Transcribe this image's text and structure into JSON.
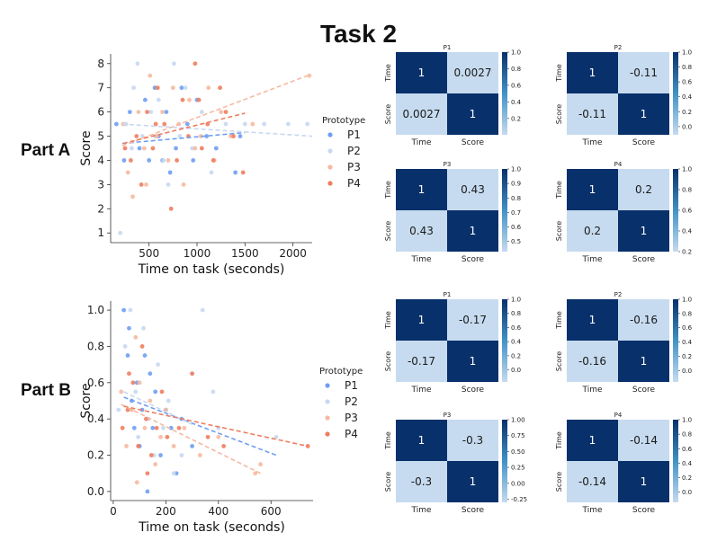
{
  "title": "Task 2",
  "part_labels": {
    "a": "Part A",
    "b": "Part B"
  },
  "colors": {
    "P1": "#6f9ef2",
    "P2": "#c6d8f2",
    "P3": "#f6b9a0",
    "P4": "#ef7d5f",
    "heat_low": "#c6dbef",
    "heat_mid": "#4292c6",
    "heat_high": "#08306b"
  },
  "chart_data": [
    {
      "id": "partA_scatter",
      "type": "scatter",
      "xlabel": "Time on task (seconds)",
      "ylabel": "Score",
      "xlim": [
        100,
        2200
      ],
      "ylim": [
        0.6,
        8.4
      ],
      "xticks": [
        500,
        1000,
        1500,
        2000
      ],
      "yticks": [
        1,
        2,
        3,
        4,
        5,
        6,
        7,
        8
      ],
      "legend": {
        "title": "Prototype",
        "entries": [
          "P1",
          "P2",
          "P3",
          "P4"
        ],
        "position": "right"
      },
      "series": [
        {
          "name": "P1",
          "color_key": "P1",
          "points": [
            [
              160,
              5.5
            ],
            [
              300,
              6
            ],
            [
              400,
              4.5
            ],
            [
              460,
              6.5
            ],
            [
              500,
              4
            ],
            [
              560,
              7
            ],
            [
              600,
              5
            ],
            [
              680,
              6
            ],
            [
              720,
              3.5
            ],
            [
              780,
              4.5
            ],
            [
              840,
              7
            ],
            [
              900,
              5.5
            ],
            [
              960,
              4
            ],
            [
              1000,
              6.5
            ],
            [
              1100,
              5
            ],
            [
              1200,
              4.5
            ],
            [
              1400,
              3.5
            ],
            [
              1450,
              5
            ],
            [
              240,
              4
            ],
            [
              640,
              4
            ]
          ],
          "trend": [
            [
              220,
              4.7
            ],
            [
              1500,
              5.15
            ]
          ]
        },
        {
          "name": "P2",
          "color_key": "P2",
          "points": [
            [
              200,
              1
            ],
            [
              260,
              5.5
            ],
            [
              320,
              4.5
            ],
            [
              380,
              8
            ],
            [
              430,
              5
            ],
            [
              520,
              6
            ],
            [
              600,
              6.5
            ],
            [
              650,
              4
            ],
            [
              700,
              3
            ],
            [
              760,
              8
            ],
            [
              820,
              5
            ],
            [
              880,
              7
            ],
            [
              950,
              4.5
            ],
            [
              1050,
              6
            ],
            [
              1150,
              3.5
            ],
            [
              1300,
              5.5
            ],
            [
              1500,
              5.5
            ],
            [
              1700,
              5.5
            ],
            [
              1950,
              5.5
            ],
            [
              2150,
              5.5
            ],
            [
              340,
              7
            ],
            [
              560,
              5
            ]
          ],
          "trend": [
            [
              220,
              5.5
            ],
            [
              2200,
              5.0
            ]
          ]
        },
        {
          "name": "P3",
          "color_key": "P3",
          "points": [
            [
              230,
              5.5
            ],
            [
              280,
              3.5
            ],
            [
              330,
              2.5
            ],
            [
              390,
              6
            ],
            [
              450,
              4.5
            ],
            [
              510,
              7.5
            ],
            [
              580,
              5
            ],
            [
              640,
              6
            ],
            [
              700,
              4
            ],
            [
              750,
              7
            ],
            [
              810,
              5.5
            ],
            [
              860,
              3
            ],
            [
              920,
              6.5
            ],
            [
              980,
              4.5
            ],
            [
              1040,
              5
            ],
            [
              1120,
              7
            ],
            [
              1180,
              4
            ],
            [
              1250,
              6
            ],
            [
              1350,
              5
            ],
            [
              1580,
              5.5
            ],
            [
              2170,
              7.5
            ],
            [
              470,
              3
            ]
          ],
          "trend": [
            [
              220,
              4.6
            ],
            [
              2150,
              7.5
            ]
          ]
        },
        {
          "name": "P4",
          "color_key": "P4",
          "points": [
            [
              250,
              4.5
            ],
            [
              310,
              4
            ],
            [
              370,
              5
            ],
            [
              420,
              3
            ],
            [
              480,
              6
            ],
            [
              540,
              4.5
            ],
            [
              590,
              7
            ],
            [
              660,
              5.5
            ],
            [
              730,
              2
            ],
            [
              790,
              4
            ],
            [
              850,
              6.5
            ],
            [
              910,
              5
            ],
            [
              980,
              8
            ],
            [
              1050,
              4.5
            ],
            [
              1110,
              5.5
            ],
            [
              1170,
              4
            ],
            [
              1240,
              7
            ],
            [
              1300,
              6
            ],
            [
              1380,
              5
            ],
            [
              1480,
              3.5
            ],
            [
              570,
              5.5
            ],
            [
              1020,
              6.5
            ]
          ],
          "trend": [
            [
              230,
              4.7
            ],
            [
              1500,
              5.95
            ]
          ]
        }
      ]
    },
    {
      "id": "partB_scatter",
      "type": "scatter",
      "xlabel": "Time on task (seconds)",
      "ylabel": "Score",
      "xlim": [
        -10,
        760
      ],
      "ylim": [
        -0.05,
        1.05
      ],
      "xticks": [
        0,
        200,
        400,
        600
      ],
      "yticks": [
        0.0,
        0.2,
        0.4,
        0.6,
        0.8,
        1.0
      ],
      "legend": {
        "title": "Prototype",
        "entries": [
          "P1",
          "P2",
          "P3",
          "P4"
        ],
        "position": "right"
      },
      "series": [
        {
          "name": "P1",
          "color_key": "P1",
          "points": [
            [
              40,
              1.0
            ],
            [
              55,
              0.75
            ],
            [
              70,
              0.5
            ],
            [
              80,
              0.35
            ],
            [
              90,
              0.6
            ],
            [
              100,
              0.25
            ],
            [
              110,
              0.45
            ],
            [
              120,
              0.75
            ],
            [
              130,
              0.0
            ],
            [
              150,
              0.35
            ],
            [
              160,
              0.55
            ],
            [
              180,
              0.2
            ],
            [
              200,
              0.45
            ],
            [
              220,
              0.35
            ],
            [
              240,
              0.1
            ],
            [
              260,
              0.4
            ],
            [
              300,
              0.25
            ],
            [
              60,
              0.9
            ],
            [
              140,
              0.65
            ]
          ],
          "trend": [
            [
              40,
              0.52
            ],
            [
              620,
              0.2
            ]
          ]
        },
        {
          "name": "P2",
          "color_key": "P2",
          "points": [
            [
              20,
              0.45
            ],
            [
              45,
              0.8
            ],
            [
              65,
              1.0
            ],
            [
              85,
              0.55
            ],
            [
              95,
              0.3
            ],
            [
              115,
              0.9
            ],
            [
              135,
              0.4
            ],
            [
              155,
              0.2
            ],
            [
              170,
              0.7
            ],
            [
              190,
              0.35
            ],
            [
              210,
              0.5
            ],
            [
              230,
              0.1
            ],
            [
              260,
              0.2
            ],
            [
              300,
              0.65
            ],
            [
              340,
              1.0
            ],
            [
              380,
              0.55
            ],
            [
              400,
              0.35
            ],
            [
              620,
              0.3
            ]
          ],
          "trend": [
            [
              40,
              0.55
            ],
            [
              300,
              0.37
            ]
          ]
        },
        {
          "name": "P3",
          "color_key": "P3",
          "points": [
            [
              30,
              0.55
            ],
            [
              50,
              0.25
            ],
            [
              70,
              0.45
            ],
            [
              85,
              0.85
            ],
            [
              100,
              0.6
            ],
            [
              120,
              0.35
            ],
            [
              140,
              0.5
            ],
            [
              160,
              0.15
            ],
            [
              180,
              0.3
            ],
            [
              200,
              0.45
            ],
            [
              230,
              0.25
            ],
            [
              270,
              0.35
            ],
            [
              330,
              0.2
            ],
            [
              400,
              0.3
            ],
            [
              540,
              0.1
            ],
            [
              560,
              0.15
            ],
            [
              90,
              0.05
            ]
          ],
          "trend": [
            [
              30,
              0.48
            ],
            [
              560,
              0.1
            ]
          ]
        },
        {
          "name": "P4",
          "color_key": "P4",
          "points": [
            [
              35,
              0.35
            ],
            [
              55,
              0.45
            ],
            [
              75,
              0.6
            ],
            [
              95,
              0.25
            ],
            [
              110,
              0.8
            ],
            [
              125,
              0.4
            ],
            [
              145,
              0.2
            ],
            [
              165,
              0.35
            ],
            [
              185,
              0.55
            ],
            [
              205,
              0.3
            ],
            [
              250,
              0.35
            ],
            [
              300,
              0.65
            ],
            [
              360,
              0.3
            ],
            [
              420,
              0.25
            ],
            [
              740,
              0.25
            ],
            [
              130,
              0.1
            ],
            [
              60,
              0.65
            ]
          ],
          "trend": [
            [
              40,
              0.47
            ],
            [
              740,
              0.25
            ]
          ]
        }
      ]
    },
    {
      "id": "partA_P1",
      "type": "heatmap",
      "title": "P1",
      "row_labels": [
        "Time",
        "Score"
      ],
      "col_labels": [
        "Time",
        "Score"
      ],
      "values": [
        [
          "1",
          "0.0027"
        ],
        [
          "0.0027",
          "1"
        ]
      ],
      "vmin": 0.0027,
      "vmax": 1.0,
      "cbar_ticks": [
        "0.2",
        "0.4",
        "0.6",
        "0.8",
        "1.0"
      ],
      "cbar_tick_values": [
        0.2,
        0.4,
        0.6,
        0.8,
        1.0
      ]
    },
    {
      "id": "partA_P2",
      "type": "heatmap",
      "title": "P2",
      "row_labels": [
        "Time",
        "Score"
      ],
      "col_labels": [
        "Time",
        "Score"
      ],
      "values": [
        [
          "1",
          "-0.11"
        ],
        [
          "-0.11",
          "1"
        ]
      ],
      "vmin": -0.11,
      "vmax": 1.0,
      "cbar_ticks": [
        "0.0",
        "0.2",
        "0.4",
        "0.6",
        "0.8",
        "1.0"
      ],
      "cbar_tick_values": [
        0,
        0.2,
        0.4,
        0.6,
        0.8,
        1.0
      ]
    },
    {
      "id": "partA_P3",
      "type": "heatmap",
      "title": "P3",
      "row_labels": [
        "Time",
        "Score"
      ],
      "col_labels": [
        "Time",
        "Score"
      ],
      "values": [
        [
          "1",
          "0.43"
        ],
        [
          "0.43",
          "1"
        ]
      ],
      "vmin": 0.43,
      "vmax": 1.0,
      "cbar_ticks": [
        "0.5",
        "0.6",
        "0.7",
        "0.8",
        "0.9",
        "1.0"
      ],
      "cbar_tick_values": [
        0.5,
        0.6,
        0.7,
        0.8,
        0.9,
        1.0
      ]
    },
    {
      "id": "partA_P4",
      "type": "heatmap",
      "title": "P4",
      "row_labels": [
        "Time",
        "Score"
      ],
      "col_labels": [
        "Time",
        "Score"
      ],
      "values": [
        [
          "1",
          "0.2"
        ],
        [
          "0.2",
          "1"
        ]
      ],
      "vmin": 0.2,
      "vmax": 1.0,
      "cbar_ticks": [
        "0.2",
        "0.4",
        "0.6",
        "0.8",
        "1.0"
      ],
      "cbar_tick_values": [
        0.2,
        0.4,
        0.6,
        0.8,
        1.0
      ]
    },
    {
      "id": "partB_P1",
      "type": "heatmap",
      "title": "P1",
      "row_labels": [
        "Time",
        "Score"
      ],
      "col_labels": [
        "Time",
        "Score"
      ],
      "values": [
        [
          "1",
          "-0.17"
        ],
        [
          "-0.17",
          "1"
        ]
      ],
      "vmin": -0.17,
      "vmax": 1.0,
      "cbar_ticks": [
        "0.0",
        "0.2",
        "0.4",
        "0.6",
        "0.8",
        "1.0"
      ],
      "cbar_tick_values": [
        0,
        0.2,
        0.4,
        0.6,
        0.8,
        1.0
      ]
    },
    {
      "id": "partB_P2",
      "type": "heatmap",
      "title": "P2",
      "row_labels": [
        "Time",
        "Score"
      ],
      "col_labels": [
        "Time",
        "Score"
      ],
      "values": [
        [
          "1",
          "-0.16"
        ],
        [
          "-0.16",
          "1"
        ]
      ],
      "vmin": -0.16,
      "vmax": 1.0,
      "cbar_ticks": [
        "0.0",
        "0.2",
        "0.4",
        "0.6",
        "0.8",
        "1.0"
      ],
      "cbar_tick_values": [
        0,
        0.2,
        0.4,
        0.6,
        0.8,
        1.0
      ]
    },
    {
      "id": "partB_P3",
      "type": "heatmap",
      "title": "P3",
      "row_labels": [
        "Time",
        "Score"
      ],
      "col_labels": [
        "Time",
        "Score"
      ],
      "values": [
        [
          "1",
          "-0.3"
        ],
        [
          "-0.3",
          "1"
        ]
      ],
      "vmin": -0.3,
      "vmax": 1.0,
      "cbar_ticks": [
        "-0.25",
        "0.00",
        "0.25",
        "0.50",
        "0.75",
        "1.00"
      ],
      "cbar_tick_values": [
        -0.25,
        0,
        0.25,
        0.5,
        0.75,
        1.0
      ]
    },
    {
      "id": "partB_P4",
      "type": "heatmap",
      "title": "P4",
      "row_labels": [
        "Time",
        "Score"
      ],
      "col_labels": [
        "Time",
        "Score"
      ],
      "values": [
        [
          "1",
          "-0.14"
        ],
        [
          "-0.14",
          "1"
        ]
      ],
      "vmin": -0.14,
      "vmax": 1.0,
      "cbar_ticks": [
        "0.0",
        "0.2",
        "0.4",
        "0.6",
        "0.8",
        "1.0"
      ],
      "cbar_tick_values": [
        0,
        0.2,
        0.4,
        0.6,
        0.8,
        1.0
      ]
    }
  ]
}
